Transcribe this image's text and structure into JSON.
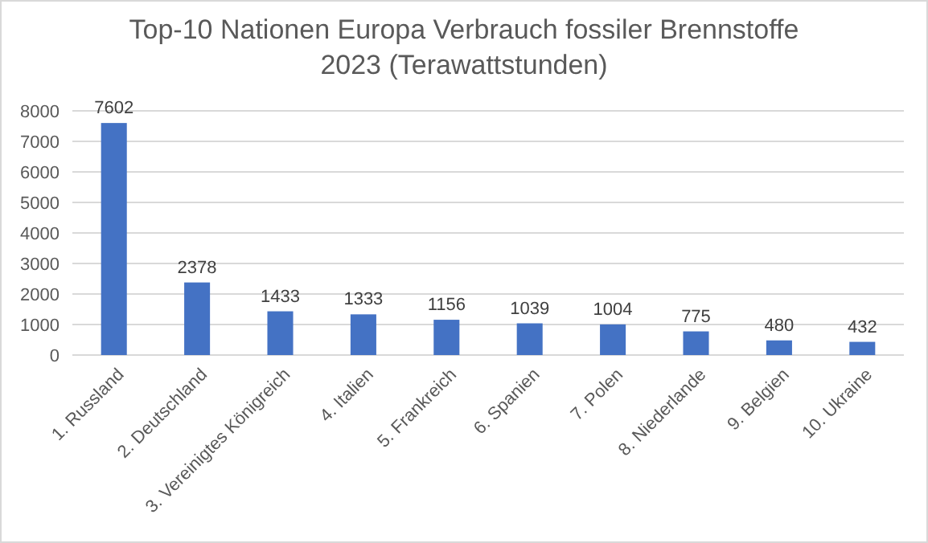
{
  "chart_data": {
    "type": "bar",
    "title": "Top-10 Nationen Europa Verbrauch fossiler Brennstoffe 2023 (Terawattstunden)",
    "categories": [
      "1. Russland",
      "2. Deutschland",
      "3. Vereinigtes Königreich",
      "4. Italien",
      "5. Frankreich",
      "6. Spanien",
      "7. Polen",
      "8. Niederlande",
      "9. Belgien",
      "10. Ukraine"
    ],
    "values": [
      7602,
      2378,
      1433,
      1333,
      1156,
      1039,
      1004,
      775,
      480,
      432
    ],
    "color": "#4472c4",
    "ylim": [
      0,
      8000
    ],
    "yticks": [
      0,
      1000,
      2000,
      3000,
      4000,
      5000,
      6000,
      7000,
      8000
    ],
    "grid": "y",
    "data_labels": true
  }
}
